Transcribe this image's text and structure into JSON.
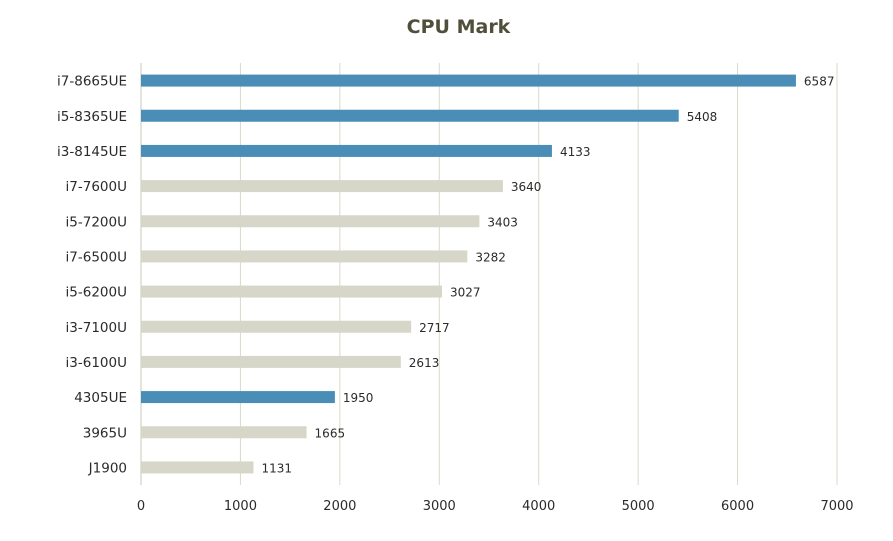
{
  "chart_data": {
    "type": "bar",
    "orientation": "horizontal",
    "title": "CPU Mark",
    "categories": [
      "i7-8665UE",
      "i5-8365UE",
      "i3-8145UE",
      "i7-7600U",
      "i5-7200U",
      "i7-6500U",
      "i5-6200U",
      "i3-7100U",
      "i3-6100U",
      "4305UE",
      "3965U",
      "J1900"
    ],
    "values": [
      6587,
      5408,
      4133,
      3640,
      3403,
      3282,
      3027,
      2717,
      2613,
      1950,
      1665,
      1131
    ],
    "highlighted": [
      true,
      true,
      true,
      false,
      false,
      false,
      false,
      false,
      false,
      true,
      false,
      false
    ],
    "xlim": [
      0,
      7000
    ],
    "xticks": [
      0,
      1000,
      2000,
      3000,
      4000,
      5000,
      6000,
      7000
    ],
    "xlabel": "",
    "ylabel": "",
    "grid": "vertical",
    "legend": "none",
    "colors": {
      "highlight": "#4a8db7",
      "default": "#d6d7c8",
      "grid": "#d9d9c9",
      "axis": "#c9c9b9"
    }
  }
}
